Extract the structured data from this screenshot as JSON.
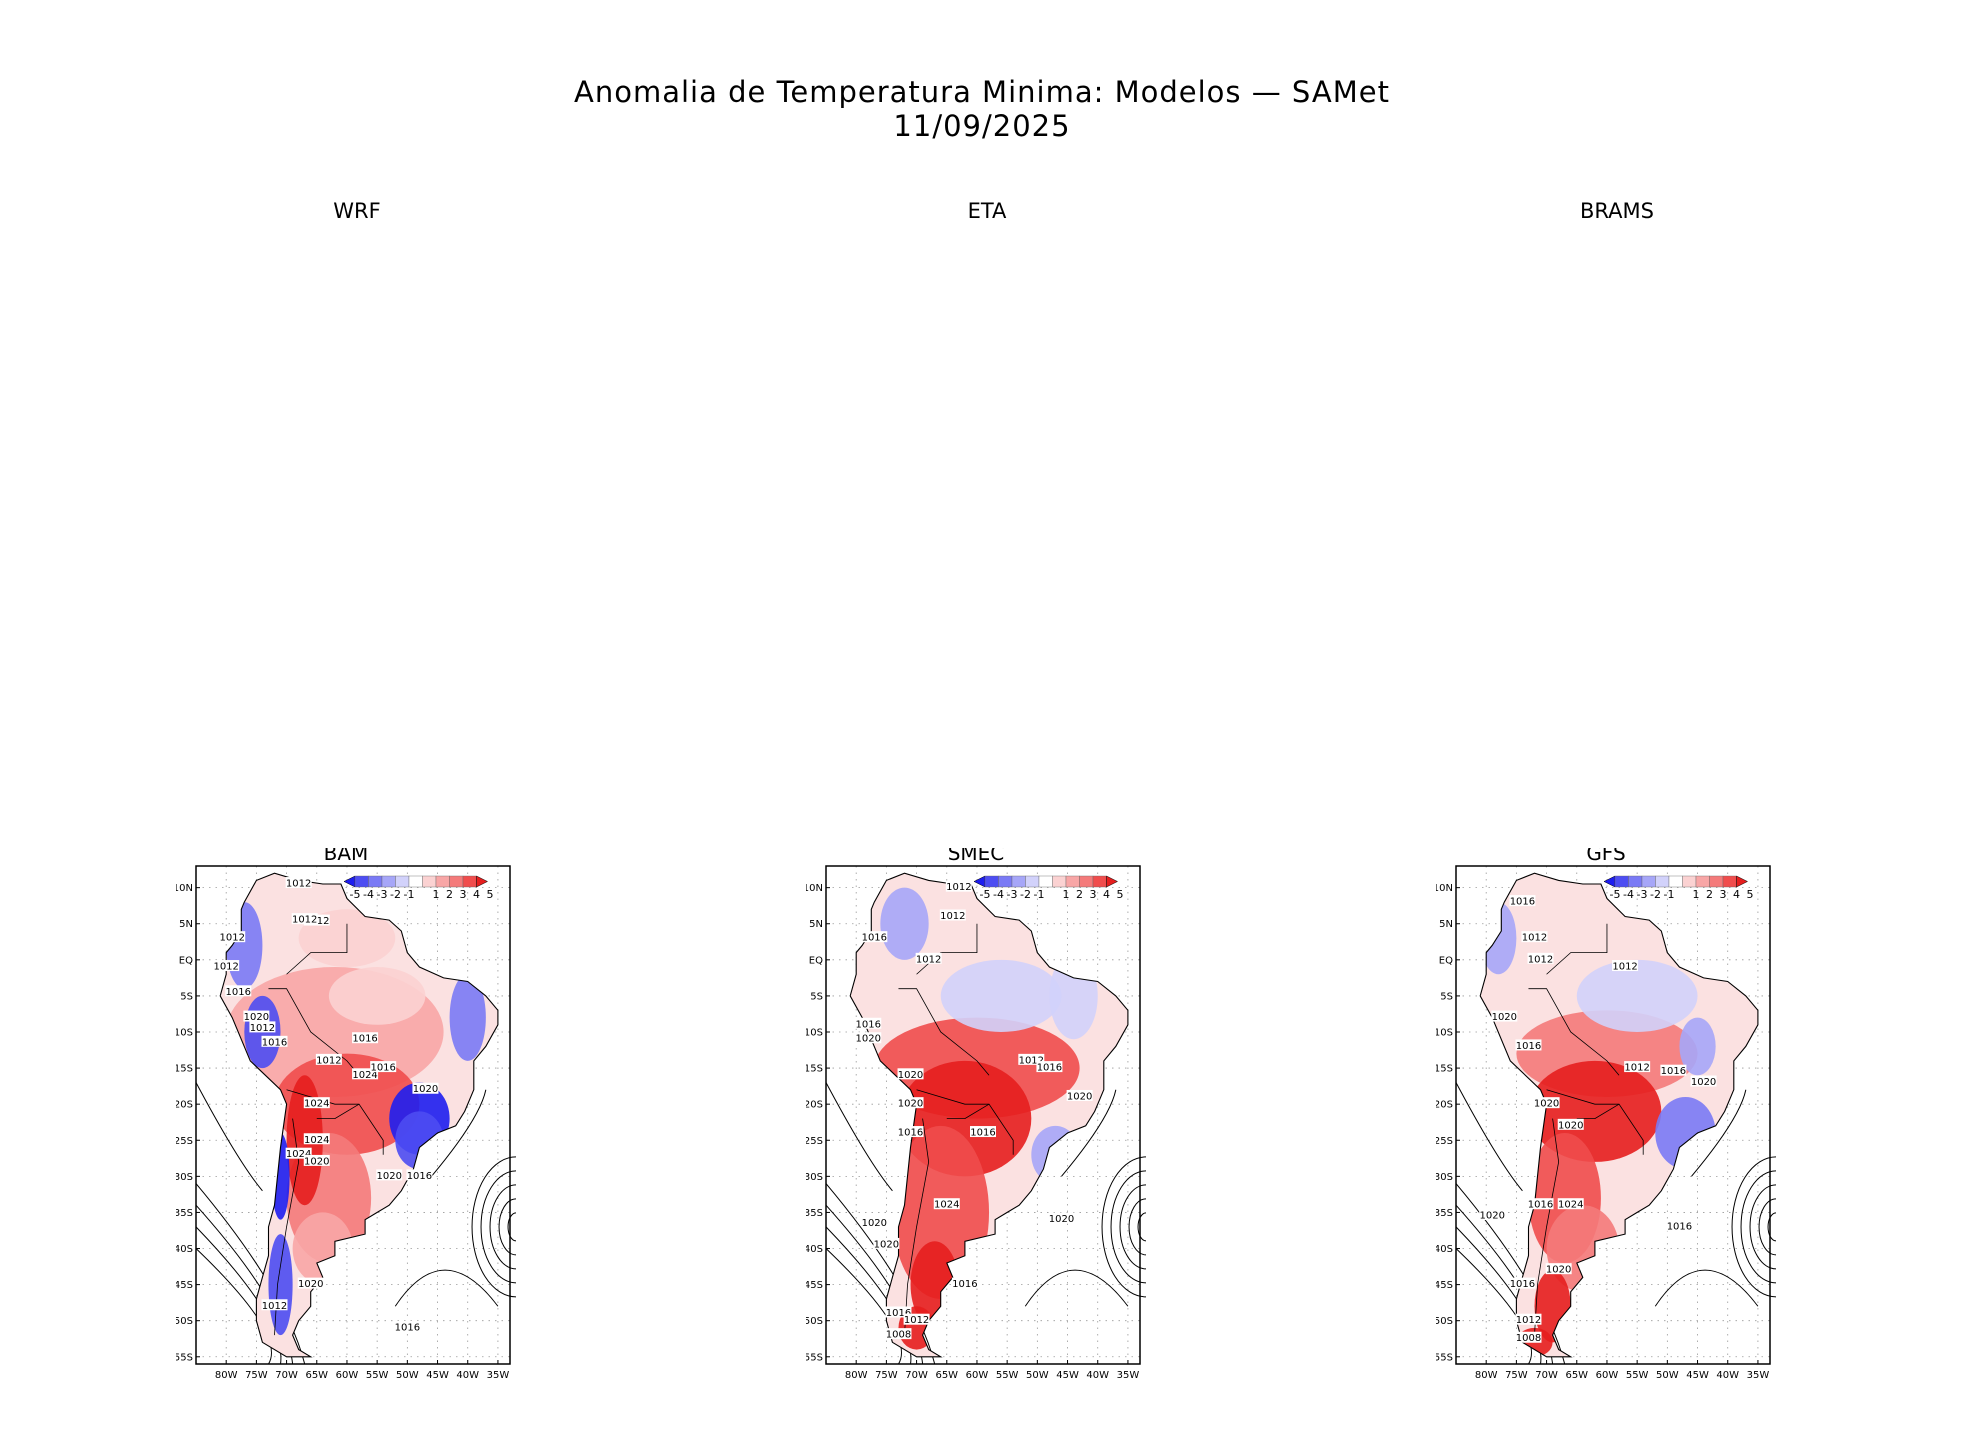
{
  "figure": {
    "title_line1": "Anomalia de Temperatura Minima: Modelos — SAMet",
    "title_line2": "11/09/2025"
  },
  "panels": {
    "top": [
      {
        "label": "WRF"
      },
      {
        "label": "ETA"
      },
      {
        "label": "BRAMS"
      }
    ],
    "bottom": [
      {
        "label": "BAM"
      },
      {
        "label": "SMEC"
      },
      {
        "label": "GFS"
      }
    ]
  },
  "chart_data": {
    "type": "heatmap",
    "variable": "Minimum temperature anomaly with sea-level pressure isobars",
    "colorbar": {
      "ticks": [
        "-5",
        "-4",
        "-3",
        "-2",
        "-1",
        "1",
        "2",
        "3",
        "4",
        "5"
      ],
      "colors": [
        "#1e1ef0",
        "#4d4df2",
        "#7a7af5",
        "#a6a6f8",
        "#d2d2fb",
        "#ffffff",
        "#fbd2d2",
        "#f8a6a6",
        "#f47a7a",
        "#f04d4d",
        "#e61e1e"
      ]
    },
    "lat_ticks": [
      "10N",
      "5N",
      "EQ",
      "5S",
      "10S",
      "15S",
      "20S",
      "25S",
      "30S",
      "35S",
      "40S",
      "45S",
      "50S",
      "55S"
    ],
    "lon_ticks": [
      "80W",
      "75W",
      "70W",
      "65W",
      "60W",
      "55W",
      "50W",
      "45W",
      "40W",
      "35W"
    ],
    "lat_range": [
      -56,
      13
    ],
    "lon_range": [
      -85,
      -33
    ],
    "maps": [
      {
        "model": "BAM",
        "isobar_labels": [
          "1012",
          "1012",
          "1012",
          "1012",
          "1016",
          "1020",
          "1012",
          "1016",
          "1012",
          "1016",
          "1024",
          "1024",
          "1024",
          "1012",
          "1016",
          "1020",
          "1024",
          "1020",
          "1020",
          "1016",
          "1012",
          "1020",
          "1016"
        ]
      },
      {
        "model": "SMEC",
        "isobar_labels": [
          "1012",
          "1012",
          "1016",
          "1012",
          "1016",
          "1020",
          "1020",
          "1020",
          "1016",
          "1016",
          "1012",
          "1016",
          "1020",
          "1024",
          "1020",
          "1020",
          "1016",
          "1020",
          "1016",
          "1012",
          "1008"
        ]
      },
      {
        "model": "GFS",
        "isobar_labels": [
          "1016",
          "1012",
          "1012",
          "1012",
          "1020",
          "1016",
          "1012",
          "1016",
          "1020",
          "1020",
          "1020",
          "1016",
          "1024",
          "1020",
          "1016",
          "1020",
          "1016",
          "1012",
          "1008"
        ]
      }
    ]
  }
}
